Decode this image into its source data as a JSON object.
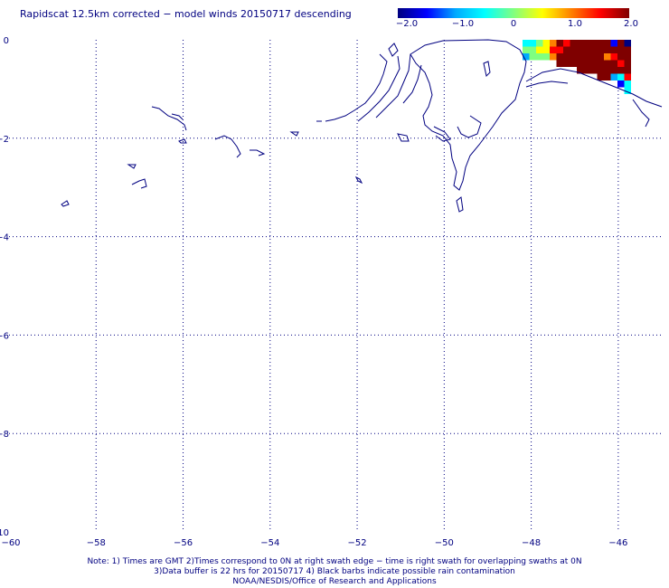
{
  "title": "Rapidscat 12.5km corrected − model winds 20150717 descending",
  "colorbar": {
    "labels": [
      "−2.0",
      "−1.0",
      "0",
      "1.0",
      "2.0"
    ],
    "values": [
      -2.0,
      -1.0,
      0,
      1.0,
      2.0
    ],
    "colors": [
      "#00007f",
      "#0000ff",
      "#00aaff",
      "#00ffff",
      "#80ff80",
      "#ffff00",
      "#ff8000",
      "#ff0000",
      "#7f0000"
    ]
  },
  "map": {
    "lon_range": [
      -60,
      -45
    ],
    "lat_range": [
      -10,
      0
    ],
    "x_tick_labels": [
      "−60",
      "−58",
      "−56",
      "−54",
      "−52",
      "−50",
      "−48",
      "−46"
    ],
    "y_tick_labels": [
      "0",
      "−2",
      "−4",
      "−6",
      "−8",
      "−10"
    ],
    "grid": "dotted",
    "coastline_color": "#000080"
  },
  "notes": {
    "line1": "Note: 1) Times are GMT 2)Times correspond to 0N at right swath edge − time is right swath for overlapping swaths at 0N",
    "line2": "3)Data buffer is 22 hrs for 20150717 4) Black barbs indicate possible rain contamination",
    "line3": "NOAA/NESDIS/Office of Research and Applications"
  }
}
